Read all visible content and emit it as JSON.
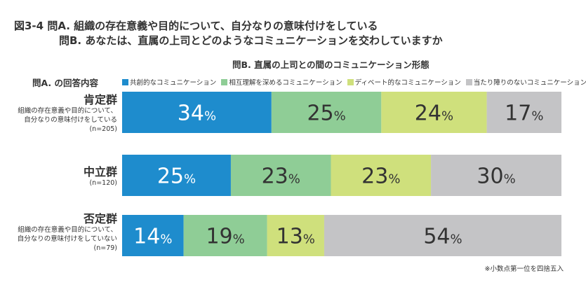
{
  "figure": {
    "title_line1": "図3-4  問A. 組織の存在意義や目的について、自分なりの意味付けをしている",
    "title_line2": "問B. あなたは、直属の上司とどのようなコミュニケーションを交わしていますか",
    "subtitle": "問B. 直属の上司との間のコミュニケーション形態",
    "row_header": "問A. の回答内容",
    "note": "※小数点第一位を四捨五入"
  },
  "groups": [
    {
      "name": "肯定群",
      "desc1": "組織の存在意義や目的について、",
      "desc2": "自分なりの意味付けをしている",
      "n": "(n=205)"
    },
    {
      "name": "中立群",
      "desc1": "",
      "desc2": "",
      "n": "(n=120)"
    },
    {
      "name": "否定群",
      "desc1": "組織の存在意義や目的について、",
      "desc2": "自分なりの意味付けをしていない",
      "n": "(n=79)"
    }
  ],
  "chart_data": {
    "type": "bar",
    "orientation": "horizontal",
    "stacked": true,
    "percent": true,
    "categories": [
      "肯定群",
      "中立群",
      "否定群"
    ],
    "series": [
      {
        "name": "共創的なコミュニケーション",
        "color": "#1e8ccd",
        "values": [
          34,
          25,
          14
        ]
      },
      {
        "name": "相互理解を深めるコミュニケーション",
        "color": "#8fcd96",
        "values": [
          25,
          23,
          19
        ]
      },
      {
        "name": "ディベート的なコミュニケーション",
        "color": "#cfe07c",
        "values": [
          24,
          23,
          13
        ]
      },
      {
        "name": "当たり障りのないコミュニケーション",
        "color": "#c4c4c6",
        "values": [
          17,
          30,
          54
        ]
      }
    ],
    "value_suffix": "%",
    "xlim": [
      0,
      100
    ],
    "legend_position": "top"
  }
}
